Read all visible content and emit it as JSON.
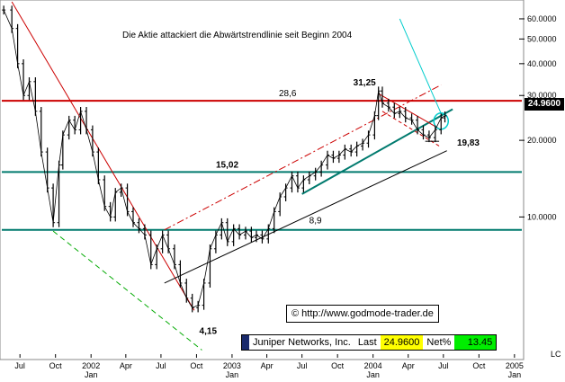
{
  "chart_data": {
    "type": "bar",
    "subtype": "ohlc-price-chart",
    "title": "Die Aktie attackiert die Abwärtstrendlinie seit Beginn 2004",
    "y_scale": "log",
    "ylim": [
      2.8,
      70
    ],
    "y_ticks": [
      {
        "value": 60,
        "label": "60.0000"
      },
      {
        "value": 50,
        "label": "50.0000"
      },
      {
        "value": 40,
        "label": "40.0000"
      },
      {
        "value": 30,
        "label": "30.0000"
      },
      {
        "value": 20,
        "label": "20.0000"
      },
      {
        "value": 10,
        "label": "10.0000"
      }
    ],
    "x_ticks": [
      {
        "month": 7,
        "year": 2001,
        "label": "Jul",
        "sub": ""
      },
      {
        "month": 10,
        "year": 2001,
        "label": "Oct",
        "sub": ""
      },
      {
        "month": 1,
        "year": 2002,
        "label": "2002",
        "sub": "Jan"
      },
      {
        "month": 4,
        "year": 2002,
        "label": "Apr",
        "sub": ""
      },
      {
        "month": 7,
        "year": 2002,
        "label": "Jul",
        "sub": ""
      },
      {
        "month": 10,
        "year": 2002,
        "label": "Oct",
        "sub": ""
      },
      {
        "month": 1,
        "year": 2003,
        "label": "2003",
        "sub": "Jan"
      },
      {
        "month": 4,
        "year": 2003,
        "label": "Apr",
        "sub": ""
      },
      {
        "month": 7,
        "year": 2003,
        "label": "Jul",
        "sub": ""
      },
      {
        "month": 10,
        "year": 2003,
        "label": "Oct",
        "sub": ""
      },
      {
        "month": 1,
        "year": 2004,
        "label": "2004",
        "sub": "Jan"
      },
      {
        "month": 4,
        "year": 2004,
        "label": "Apr",
        "sub": ""
      },
      {
        "month": 7,
        "year": 2004,
        "label": "Jul",
        "sub": ""
      },
      {
        "month": 10,
        "year": 2004,
        "label": "Oct",
        "sub": ""
      },
      {
        "month": 1,
        "year": 2005,
        "label": "2005",
        "sub": "Jan"
      }
    ],
    "x_range": [
      "2001-05-15",
      "2005-01-20"
    ],
    "series": [
      {
        "name": "Juniper Networks, Inc.",
        "values": [
          {
            "date": "2001-05-20",
            "v": 65
          },
          {
            "date": "2001-06-10",
            "v": 55
          },
          {
            "date": "2001-06-25",
            "v": 40
          },
          {
            "date": "2001-07-10",
            "v": 30
          },
          {
            "date": "2001-07-25",
            "v": 34
          },
          {
            "date": "2001-08-10",
            "v": 26
          },
          {
            "date": "2001-08-25",
            "v": 18
          },
          {
            "date": "2001-09-10",
            "v": 13
          },
          {
            "date": "2001-09-25",
            "v": 9.5
          },
          {
            "date": "2001-10-10",
            "v": 16
          },
          {
            "date": "2001-10-20",
            "v": 21
          },
          {
            "date": "2001-11-05",
            "v": 24
          },
          {
            "date": "2001-11-20",
            "v": 22
          },
          {
            "date": "2001-12-05",
            "v": 26
          },
          {
            "date": "2001-12-20",
            "v": 22
          },
          {
            "date": "2002-01-05",
            "v": 18
          },
          {
            "date": "2002-01-20",
            "v": 14
          },
          {
            "date": "2002-02-05",
            "v": 11
          },
          {
            "date": "2002-02-20",
            "v": 10
          },
          {
            "date": "2002-03-05",
            "v": 12.5
          },
          {
            "date": "2002-03-20",
            "v": 13
          },
          {
            "date": "2002-04-05",
            "v": 10.5
          },
          {
            "date": "2002-04-20",
            "v": 9.5
          },
          {
            "date": "2002-05-05",
            "v": 9
          },
          {
            "date": "2002-05-20",
            "v": 8.5
          },
          {
            "date": "2002-06-05",
            "v": 6.5
          },
          {
            "date": "2002-06-20",
            "v": 7.5
          },
          {
            "date": "2002-07-05",
            "v": 8.5
          },
          {
            "date": "2002-07-20",
            "v": 7.5
          },
          {
            "date": "2002-08-05",
            "v": 6.5
          },
          {
            "date": "2002-08-20",
            "v": 5.5
          },
          {
            "date": "2002-09-05",
            "v": 4.8
          },
          {
            "date": "2002-09-20",
            "v": 4.4
          },
          {
            "date": "2002-10-05",
            "v": 4.5
          },
          {
            "date": "2002-10-20",
            "v": 5.5
          },
          {
            "date": "2002-11-05",
            "v": 7.5
          },
          {
            "date": "2002-11-20",
            "v": 8.5
          },
          {
            "date": "2002-12-05",
            "v": 9.5
          },
          {
            "date": "2002-12-20",
            "v": 8
          },
          {
            "date": "2003-01-05",
            "v": 9
          },
          {
            "date": "2003-01-20",
            "v": 8.5
          },
          {
            "date": "2003-02-05",
            "v": 8.8
          },
          {
            "date": "2003-02-20",
            "v": 8.3
          },
          {
            "date": "2003-03-05",
            "v": 8.5
          },
          {
            "date": "2003-03-20",
            "v": 8.2
          },
          {
            "date": "2003-04-05",
            "v": 9
          },
          {
            "date": "2003-04-20",
            "v": 10.5
          },
          {
            "date": "2003-05-05",
            "v": 12
          },
          {
            "date": "2003-05-20",
            "v": 13
          },
          {
            "date": "2003-06-05",
            "v": 14.5
          },
          {
            "date": "2003-06-20",
            "v": 13
          },
          {
            "date": "2003-07-05",
            "v": 14
          },
          {
            "date": "2003-07-20",
            "v": 14.5
          },
          {
            "date": "2003-08-05",
            "v": 15
          },
          {
            "date": "2003-08-20",
            "v": 16
          },
          {
            "date": "2003-09-05",
            "v": 17.5
          },
          {
            "date": "2003-09-20",
            "v": 17
          },
          {
            "date": "2003-10-05",
            "v": 17.5
          },
          {
            "date": "2003-10-20",
            "v": 18.5
          },
          {
            "date": "2003-11-05",
            "v": 18
          },
          {
            "date": "2003-11-20",
            "v": 19
          },
          {
            "date": "2003-12-05",
            "v": 19.5
          },
          {
            "date": "2003-12-20",
            "v": 21
          },
          {
            "date": "2004-01-05",
            "v": 25
          },
          {
            "date": "2004-01-15",
            "v": 31.25
          },
          {
            "date": "2004-01-25",
            "v": 28
          },
          {
            "date": "2004-02-10",
            "v": 27
          },
          {
            "date": "2004-02-25",
            "v": 25.5
          },
          {
            "date": "2004-03-10",
            "v": 26
          },
          {
            "date": "2004-03-25",
            "v": 24.5
          },
          {
            "date": "2004-04-10",
            "v": 24
          },
          {
            "date": "2004-04-25",
            "v": 22
          },
          {
            "date": "2004-05-10",
            "v": 21
          },
          {
            "date": "2004-05-25",
            "v": 20.5
          },
          {
            "date": "2004-06-10",
            "v": 22
          },
          {
            "date": "2004-06-25",
            "v": 24.5
          },
          {
            "date": "2004-07-05",
            "v": 24.96
          }
        ]
      }
    ],
    "reference_lines": [
      {
        "label": "28,6",
        "value": 28.6,
        "color": "#cc0000"
      },
      {
        "label": "15,02",
        "value": 15.02,
        "color": "#007a6e"
      },
      {
        "label": "",
        "value": 8.9,
        "color": "#007a6e"
      }
    ],
    "annotations": [
      {
        "text": "31,25",
        "date": "2004-01-15",
        "value": 31.25
      },
      {
        "text": "19,83",
        "date": "2004-06-01",
        "value": 19.83
      },
      {
        "text": "8,9",
        "date": "2003-07-15",
        "value": 8.9
      },
      {
        "text": "4,15",
        "date": "2002-09-15",
        "value": 4.15
      }
    ],
    "current_price": "24.9600",
    "colors": {
      "price": "#000000",
      "resistance": "#cc0000",
      "support": "#007a6e",
      "trend_up": "#000000",
      "trend_down": "#cc0000",
      "channel_green": "#00aa00",
      "highlight": "#00cccc"
    }
  },
  "ticker": {
    "name": "Juniper Networks, Inc.",
    "last_label": "Last",
    "last_value": "24.9600",
    "net_label": "Net%",
    "net_value": "13.45"
  },
  "credit": "© http://www.godmode-trader.de",
  "corner_label": "LC"
}
